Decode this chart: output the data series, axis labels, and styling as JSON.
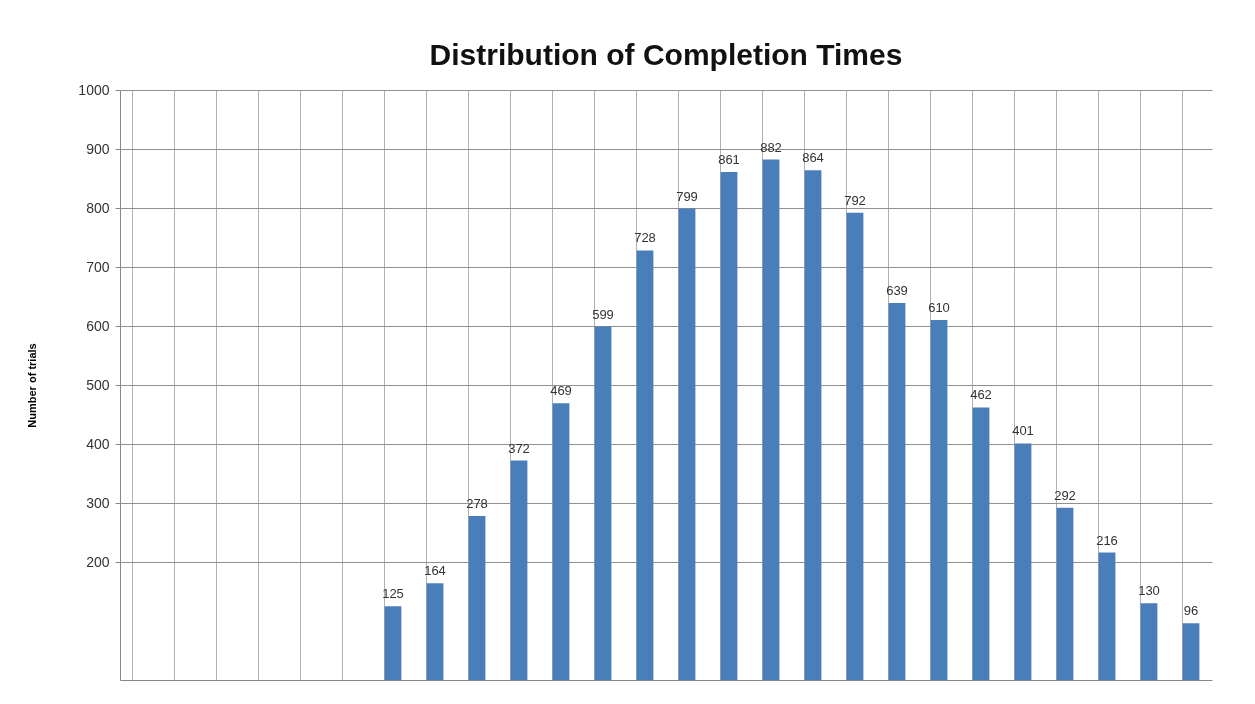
{
  "chart_data": {
    "type": "bar",
    "title": "Distribution of Completion Times",
    "ylabel": "Number of trials",
    "categories": [
      null,
      null,
      null,
      null,
      null,
      null,
      null,
      null,
      null,
      null,
      null,
      null,
      null,
      null,
      null,
      null,
      null,
      null,
      null,
      null,
      null,
      null,
      null,
      null,
      null,
      null
    ],
    "values": [
      null,
      null,
      null,
      null,
      null,
      null,
      125,
      164,
      278,
      372,
      469,
      599,
      728,
      799,
      861,
      882,
      864,
      792,
      639,
      610,
      462,
      401,
      292,
      216,
      130,
      96
    ],
    "color": "#4a7ebb",
    "ylim": [
      0,
      1000
    ],
    "yticks": [
      200,
      300,
      400,
      500,
      600,
      700,
      800,
      900,
      1000
    ],
    "grid": true,
    "data_labels": true
  }
}
